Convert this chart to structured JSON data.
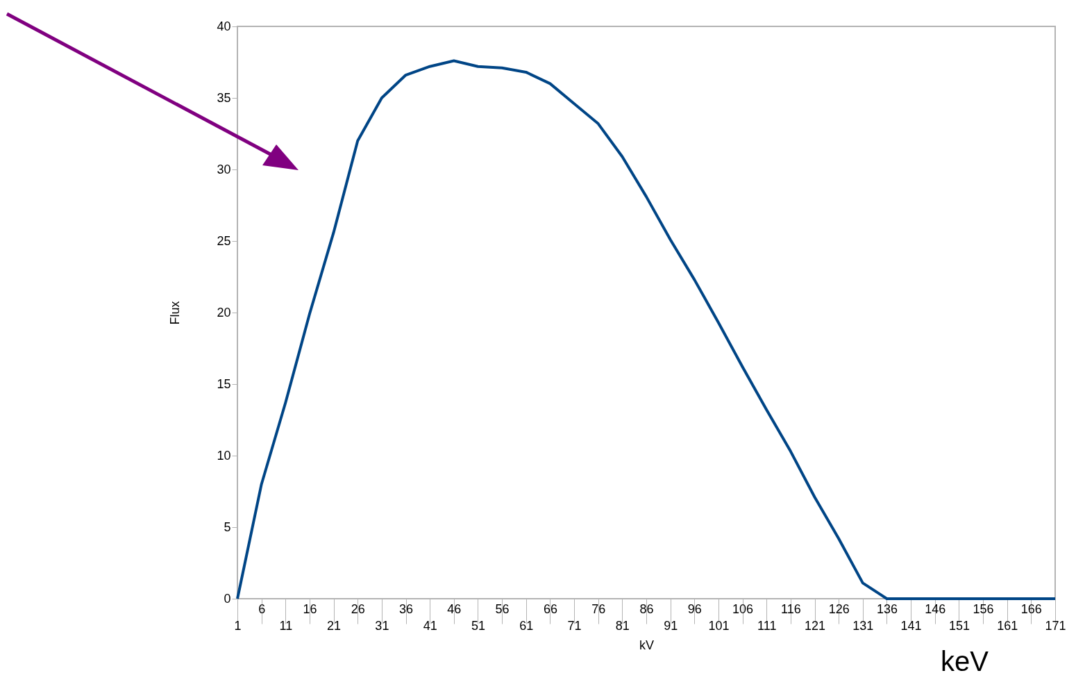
{
  "chart_data": {
    "type": "line",
    "xlabel": "kV",
    "ylabel": "Flux",
    "categories": [
      "1",
      "6",
      "11",
      "16",
      "21",
      "26",
      "31",
      "36",
      "41",
      "46",
      "51",
      "56",
      "61",
      "66",
      "71",
      "76",
      "81",
      "86",
      "91",
      "96",
      "101",
      "106",
      "111",
      "116",
      "121",
      "126",
      "131",
      "136",
      "141",
      "146",
      "151",
      "156",
      "161",
      "166",
      "171"
    ],
    "series": [
      {
        "color": "#004586",
        "values": [
          0,
          8.0,
          13.7,
          19.9,
          25.6,
          32.0,
          35.0,
          36.6,
          37.2,
          37.6,
          37.2,
          37.1,
          36.8,
          36.0,
          34.6,
          33.2,
          30.9,
          28.1,
          25.1,
          22.3,
          19.3,
          16.2,
          13.2,
          10.3,
          7.1,
          4.2,
          1.1,
          0,
          0,
          0,
          0,
          0,
          0,
          0,
          0
        ]
      }
    ],
    "ylim": [
      0,
      40
    ],
    "yticks": [
      0,
      5,
      10,
      15,
      20,
      25,
      30,
      35,
      40
    ],
    "grid": false,
    "marker": "none",
    "line_style": "solid",
    "annotations": [
      "keV"
    ]
  }
}
